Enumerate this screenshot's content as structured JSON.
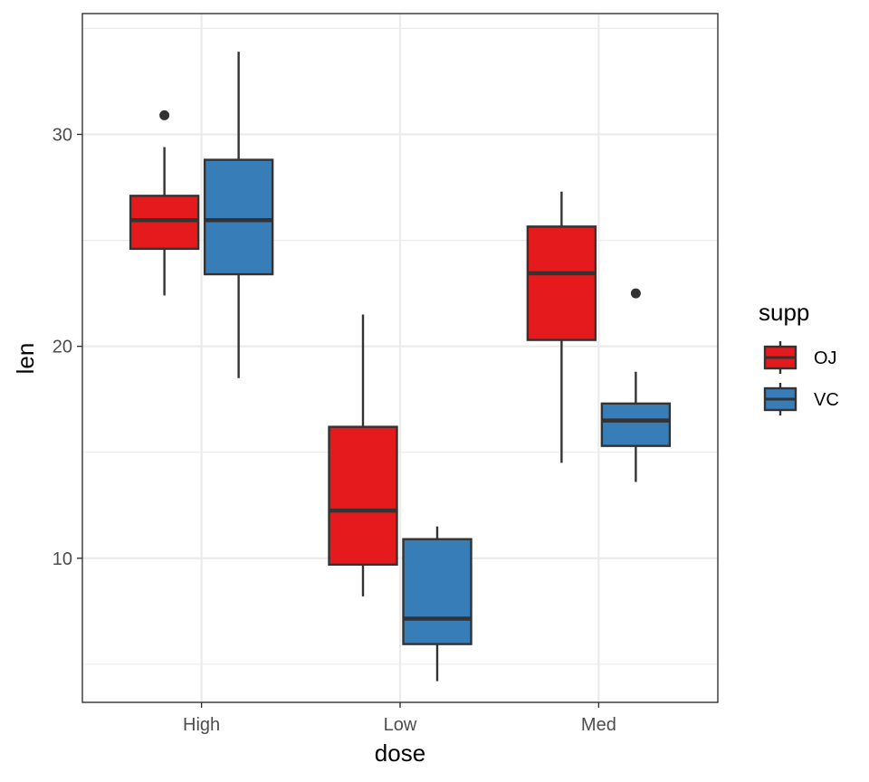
{
  "chart_data": {
    "type": "box",
    "title": "",
    "xlabel": "dose",
    "ylabel": "len",
    "categories": [
      "High",
      "Low",
      "Med"
    ],
    "ylim": [
      3.2,
      35.7
    ],
    "yticks": [
      10,
      20,
      30
    ],
    "grid": true,
    "legend": {
      "title": "supp",
      "position": "right"
    },
    "series": [
      {
        "name": "OJ",
        "color": "#E41A1C",
        "boxes": [
          {
            "category": "High",
            "whisker_low": 22.4,
            "q1": 24.6,
            "median": 25.95,
            "q3": 27.1,
            "whisker_high": 29.4,
            "outliers": [
              30.9
            ]
          },
          {
            "category": "Low",
            "whisker_low": 8.2,
            "q1": 9.7,
            "median": 12.25,
            "q3": 16.2,
            "whisker_high": 21.5,
            "outliers": []
          },
          {
            "category": "Med",
            "whisker_low": 14.5,
            "q1": 20.3,
            "median": 23.45,
            "q3": 25.65,
            "whisker_high": 27.3,
            "outliers": []
          }
        ]
      },
      {
        "name": "VC",
        "color": "#377EB8",
        "boxes": [
          {
            "category": "High",
            "whisker_low": 18.5,
            "q1": 23.4,
            "median": 25.95,
            "q3": 28.8,
            "whisker_high": 33.9,
            "outliers": []
          },
          {
            "category": "Low",
            "whisker_low": 4.2,
            "q1": 5.95,
            "median": 7.15,
            "q3": 10.9,
            "whisker_high": 11.5,
            "outliers": []
          },
          {
            "category": "Med",
            "whisker_low": 13.6,
            "q1": 15.3,
            "median": 16.5,
            "q3": 17.3,
            "whisker_high": 18.8,
            "outliers": [
              22.5
            ]
          }
        ]
      }
    ]
  }
}
